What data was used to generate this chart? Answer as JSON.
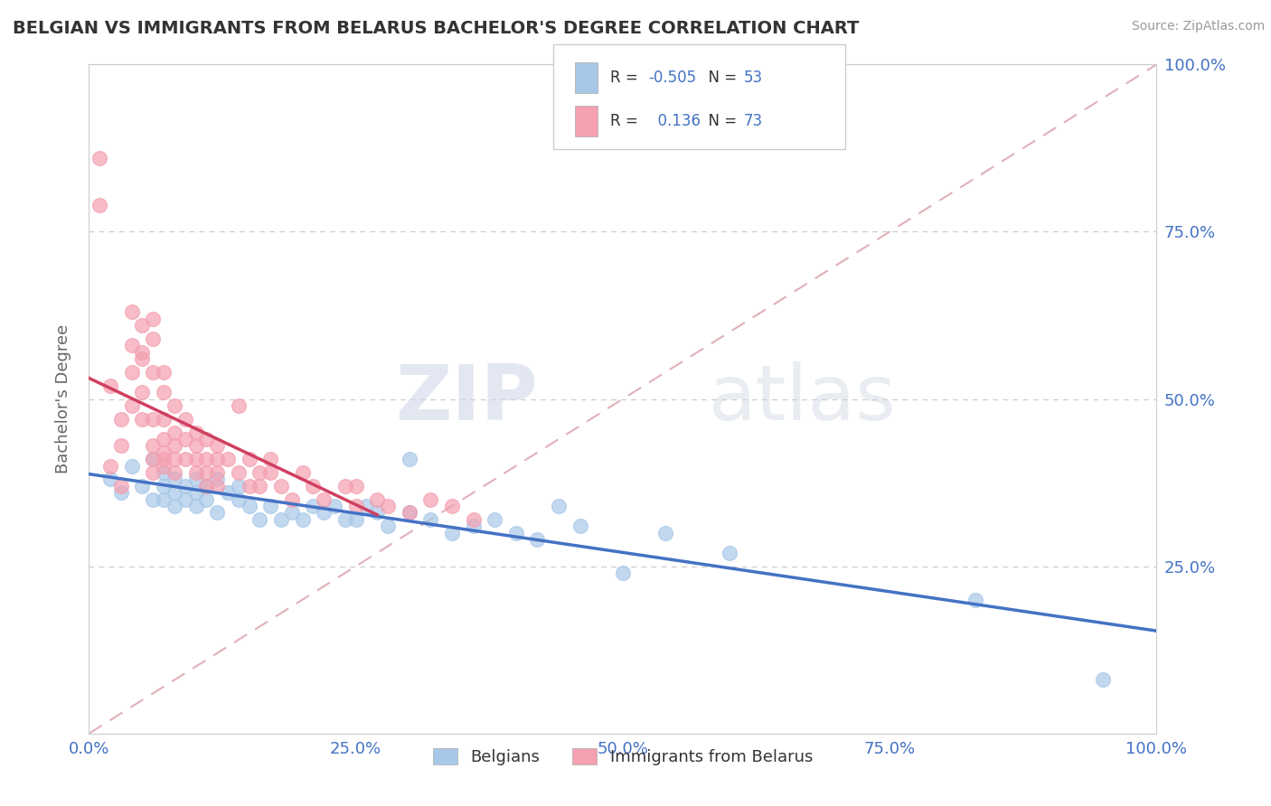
{
  "title": "BELGIAN VS IMMIGRANTS FROM BELARUS BACHELOR'S DEGREE CORRELATION CHART",
  "source": "Source: ZipAtlas.com",
  "ylabel": "Bachelor's Degree",
  "xlim": [
    0.0,
    1.0
  ],
  "ylim": [
    0.0,
    1.0
  ],
  "x_ticks": [
    0.0,
    0.25,
    0.5,
    0.75,
    1.0
  ],
  "x_tick_labels": [
    "0.0%",
    "25.0%",
    "50.0%",
    "75.0%",
    "100.0%"
  ],
  "y_ticks": [
    0.25,
    0.5,
    0.75,
    1.0
  ],
  "y_tick_labels": [
    "25.0%",
    "50.0%",
    "75.0%",
    "100.0%"
  ],
  "belgians_color": "#a8c8e8",
  "belarus_color": "#f4a0b0",
  "belgians_line_color": "#4472c4",
  "belarus_line_color": "#d04060",
  "ref_line_color": "#e0b0b8",
  "legend_R_belgians": "-0.505",
  "legend_N_belgians": "53",
  "legend_R_belarus": "0.136",
  "legend_N_belarus": "73",
  "watermark_zip": "ZIP",
  "watermark_atlas": "atlas",
  "background_color": "#ffffff",
  "tick_color": "#4472c4",
  "belgians_x": [
    0.02,
    0.03,
    0.04,
    0.05,
    0.06,
    0.06,
    0.07,
    0.07,
    0.07,
    0.08,
    0.08,
    0.08,
    0.09,
    0.09,
    0.1,
    0.1,
    0.1,
    0.11,
    0.11,
    0.12,
    0.12,
    0.13,
    0.14,
    0.14,
    0.15,
    0.16,
    0.17,
    0.18,
    0.19,
    0.2,
    0.21,
    0.22,
    0.23,
    0.24,
    0.25,
    0.26,
    0.27,
    0.28,
    0.3,
    0.3,
    0.32,
    0.34,
    0.36,
    0.38,
    0.4,
    0.42,
    0.44,
    0.46,
    0.5,
    0.54,
    0.6,
    0.83,
    0.95
  ],
  "belgians_y": [
    0.38,
    0.36,
    0.4,
    0.37,
    0.41,
    0.35,
    0.39,
    0.37,
    0.35,
    0.38,
    0.36,
    0.34,
    0.37,
    0.35,
    0.38,
    0.36,
    0.34,
    0.37,
    0.35,
    0.38,
    0.33,
    0.36,
    0.35,
    0.37,
    0.34,
    0.32,
    0.34,
    0.32,
    0.33,
    0.32,
    0.34,
    0.33,
    0.34,
    0.32,
    0.32,
    0.34,
    0.33,
    0.31,
    0.33,
    0.41,
    0.32,
    0.3,
    0.31,
    0.32,
    0.3,
    0.29,
    0.34,
    0.31,
    0.24,
    0.3,
    0.27,
    0.2,
    0.08
  ],
  "belarus_x": [
    0.01,
    0.01,
    0.02,
    0.02,
    0.03,
    0.03,
    0.03,
    0.04,
    0.04,
    0.04,
    0.04,
    0.05,
    0.05,
    0.05,
    0.05,
    0.05,
    0.06,
    0.06,
    0.06,
    0.06,
    0.06,
    0.06,
    0.06,
    0.07,
    0.07,
    0.07,
    0.07,
    0.07,
    0.07,
    0.07,
    0.08,
    0.08,
    0.08,
    0.08,
    0.08,
    0.09,
    0.09,
    0.09,
    0.1,
    0.1,
    0.1,
    0.1,
    0.11,
    0.11,
    0.11,
    0.11,
    0.12,
    0.12,
    0.12,
    0.12,
    0.13,
    0.14,
    0.14,
    0.15,
    0.15,
    0.16,
    0.16,
    0.17,
    0.17,
    0.18,
    0.19,
    0.2,
    0.21,
    0.22,
    0.24,
    0.25,
    0.25,
    0.27,
    0.28,
    0.3,
    0.32,
    0.34,
    0.36
  ],
  "belarus_y": [
    0.79,
    0.86,
    0.4,
    0.52,
    0.37,
    0.43,
    0.47,
    0.58,
    0.63,
    0.54,
    0.49,
    0.56,
    0.61,
    0.57,
    0.51,
    0.47,
    0.59,
    0.54,
    0.47,
    0.43,
    0.41,
    0.39,
    0.62,
    0.54,
    0.51,
    0.47,
    0.44,
    0.42,
    0.41,
    0.4,
    0.49,
    0.45,
    0.43,
    0.41,
    0.39,
    0.47,
    0.44,
    0.41,
    0.45,
    0.43,
    0.41,
    0.39,
    0.44,
    0.41,
    0.39,
    0.37,
    0.43,
    0.41,
    0.39,
    0.37,
    0.41,
    0.39,
    0.49,
    0.37,
    0.41,
    0.39,
    0.37,
    0.41,
    0.39,
    0.37,
    0.35,
    0.39,
    0.37,
    0.35,
    0.37,
    0.34,
    0.37,
    0.35,
    0.34,
    0.33,
    0.35,
    0.34,
    0.32
  ]
}
